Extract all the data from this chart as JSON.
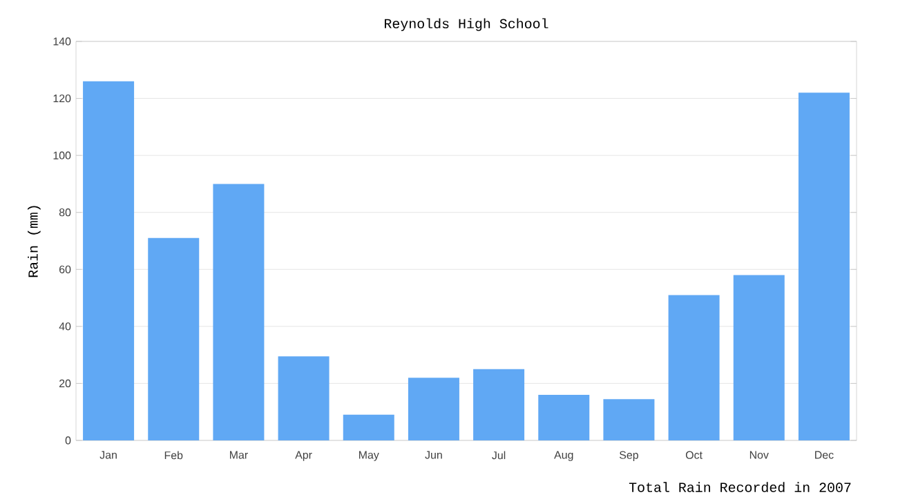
{
  "chart_data": {
    "type": "bar",
    "title": "Reynolds High School",
    "ylabel": "Rain (mm)",
    "categories": [
      "Jan",
      "Feb",
      "Mar",
      "Apr",
      "May",
      "Jun",
      "Jul",
      "Aug",
      "Sep",
      "Oct",
      "Nov",
      "Dec"
    ],
    "values": [
      126,
      71,
      90,
      29.5,
      9,
      22,
      25,
      16,
      14.5,
      51,
      58,
      122
    ],
    "color": "#60a8f4",
    "ylim": [
      0,
      140
    ],
    "yticks": [
      0,
      20,
      40,
      60,
      80,
      100,
      120,
      140
    ],
    "grid": "y",
    "annotations": [
      "Total Rain Recorded in 2007"
    ]
  }
}
